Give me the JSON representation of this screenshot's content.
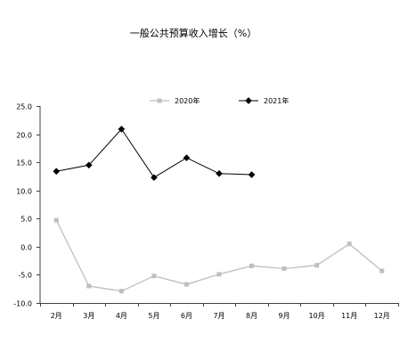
{
  "chart_data": {
    "type": "line",
    "title": "一般公共预算收入增长（%）",
    "xlabel": "",
    "ylabel": "",
    "categories": [
      "2月",
      "3月",
      "4月",
      "5月",
      "6月",
      "7月",
      "8月",
      "9月",
      "10月",
      "11月",
      "12月"
    ],
    "series": [
      {
        "name": "2020年",
        "color": "#bfbfbf",
        "marker": "square",
        "values": [
          4.7,
          -7.0,
          -7.9,
          -5.2,
          -6.7,
          -4.9,
          -3.4,
          -3.9,
          -3.3,
          0.5,
          -4.3
        ]
      },
      {
        "name": "2021年",
        "color": "#000000",
        "marker": "diamond",
        "values": [
          13.4,
          14.5,
          20.9,
          12.3,
          15.8,
          13.0,
          12.8,
          null,
          null,
          null,
          null
        ]
      }
    ],
    "ylim": [
      -10,
      25
    ],
    "yticks": [
      "25.0",
      "20.0",
      "15.0",
      "10.0",
      "5.0",
      "0.0",
      "-5.0",
      "-10.0"
    ],
    "axis_color": "#404040",
    "grid": false,
    "legend": "top-center"
  }
}
